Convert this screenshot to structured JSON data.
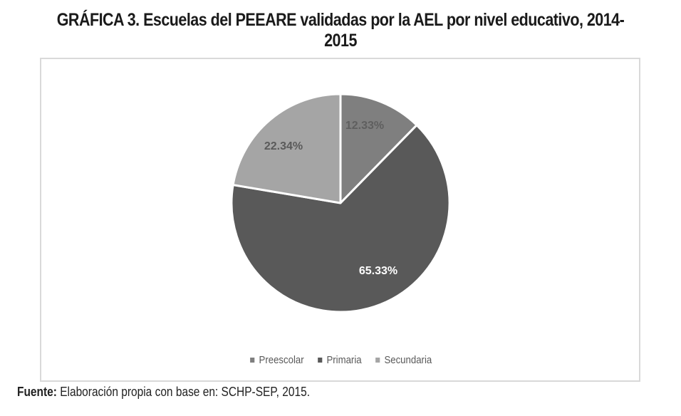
{
  "title": {
    "prefix": "GRÁFICA 3.",
    "text": " Escuelas del PEEARE validadas por la AEL por nivel educativo, 2014-2015"
  },
  "legend": [
    {
      "label": "Preescolar",
      "color": "#7f7f7f"
    },
    {
      "label": "Primaria",
      "color": "#595959"
    },
    {
      "label": "Secundaria",
      "color": "#a5a5a5"
    }
  ],
  "labels": {
    "preescolar": "12.33%",
    "primaria": "65.33%",
    "secundaria": "22.34%"
  },
  "footer": {
    "bold": "Fuente:",
    "text": " Elaboración propia con base en: SCHP-SEP, 2015."
  },
  "chart_data": {
    "type": "pie",
    "title": "GRÁFICA 3. Escuelas del PEEARE validadas por la AEL por nivel educativo, 2014-2015",
    "categories": [
      "Preescolar",
      "Primaria",
      "Secundaria"
    ],
    "values": [
      12.33,
      65.33,
      22.34
    ],
    "unit": "%",
    "colors": [
      "#7f7f7f",
      "#595959",
      "#a5a5a5"
    ],
    "legend_position": "bottom",
    "source": "Fuente: Elaboración propia con base en: SCHP-SEP, 2015."
  }
}
